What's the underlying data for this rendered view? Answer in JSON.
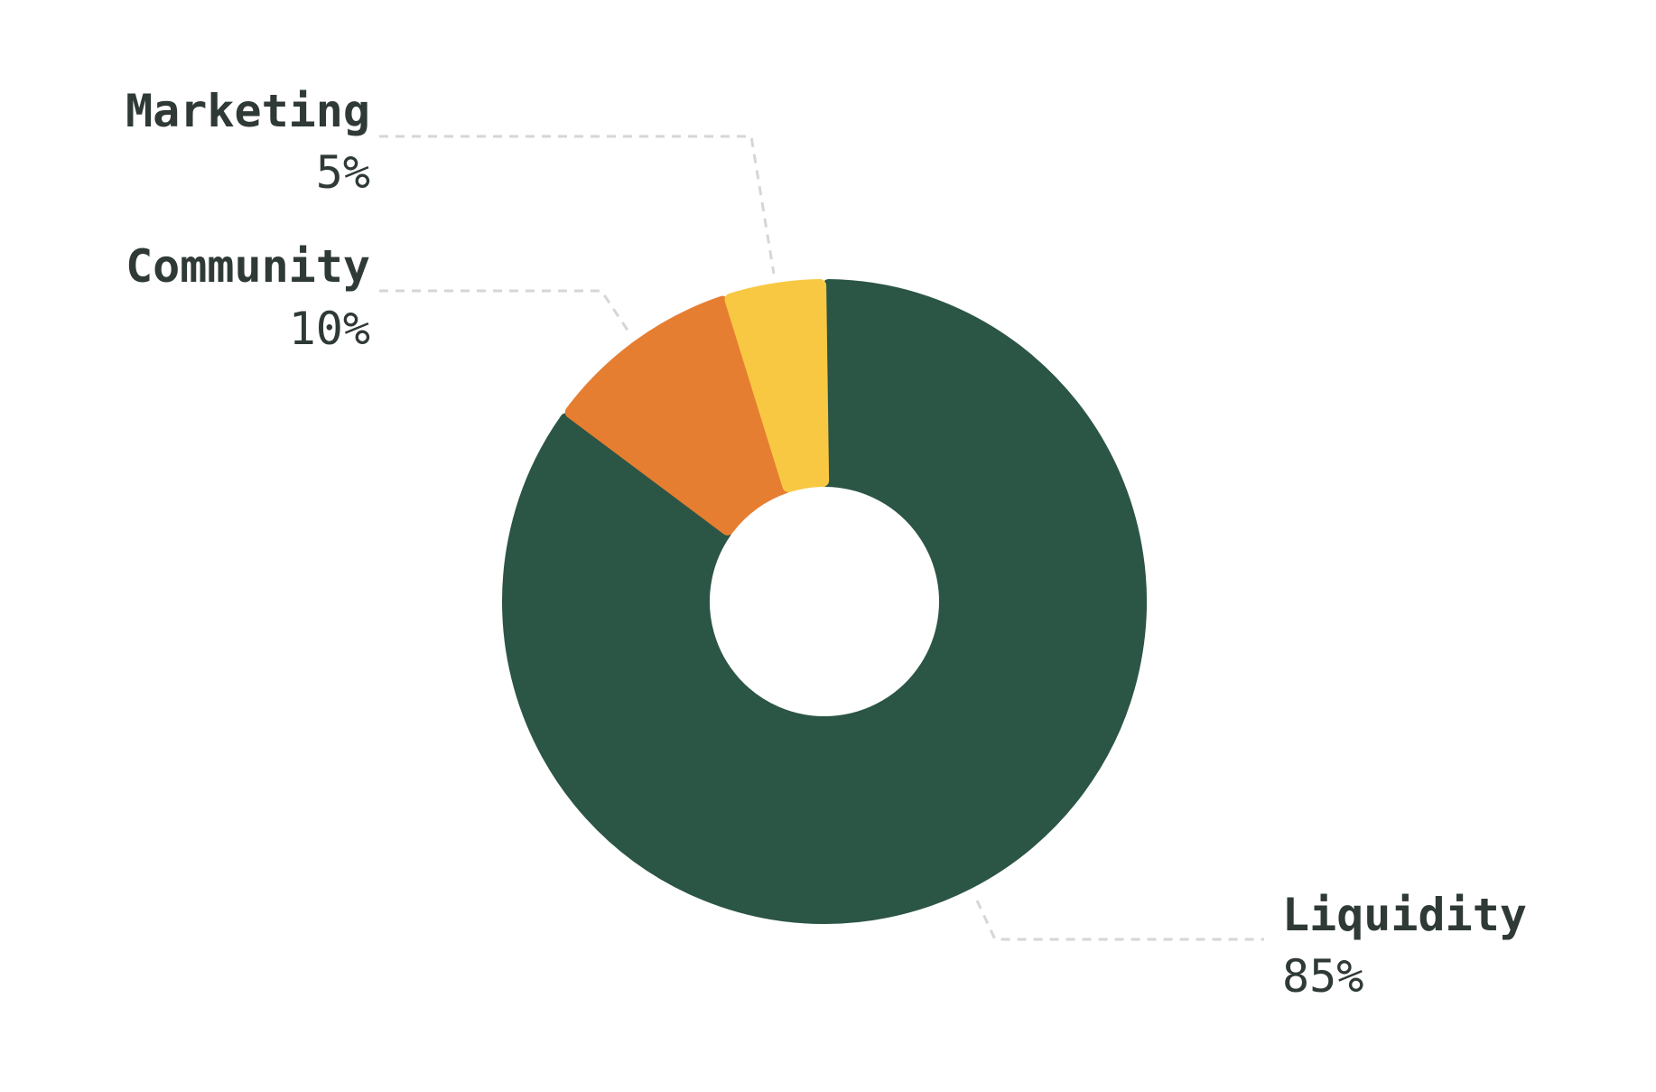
{
  "chart_data": {
    "type": "pie",
    "variant": "donut",
    "title": "",
    "slices": [
      {
        "label": "Liquidity",
        "value": 85,
        "value_label": "85%",
        "color": "#2b5545"
      },
      {
        "label": "Community",
        "value": 10,
        "value_label": "10%",
        "color": "#e67e32"
      },
      {
        "label": "Marketing",
        "value": 5,
        "value_label": "5%",
        "color": "#f9c843"
      }
    ],
    "legend": "none",
    "label_style": "external labels with dashed leader lines"
  }
}
